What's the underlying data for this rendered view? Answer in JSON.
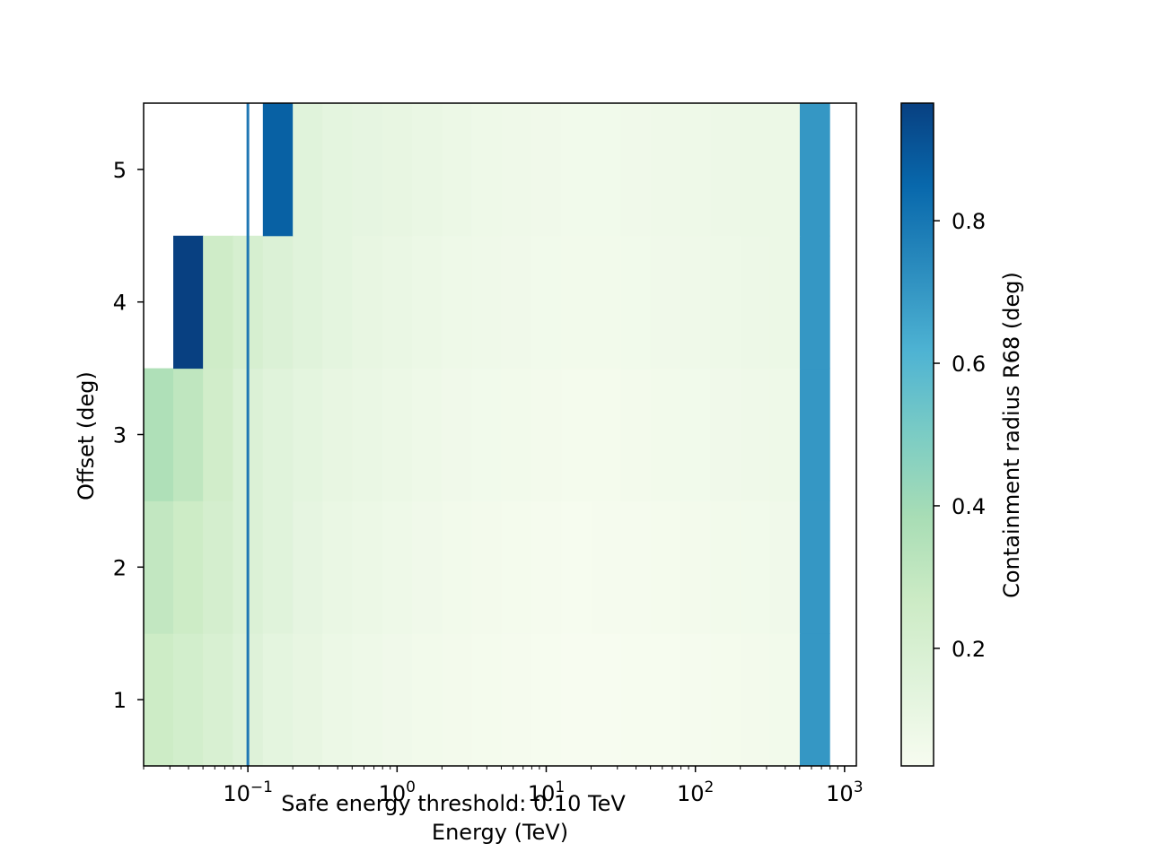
{
  "chart_data": {
    "type": "heatmap",
    "title": "",
    "xlabel": "Energy (TeV)",
    "ylabel": "Offset (deg)",
    "x_scale": "log",
    "xlim": [
      0.02,
      1200
    ],
    "ylim": [
      0.5,
      5.5
    ],
    "x_ticks": [
      {
        "value": 0.1,
        "base": "10",
        "exp": "−1"
      },
      {
        "value": 1,
        "base": "10",
        "exp": "0"
      },
      {
        "value": 10,
        "base": "10",
        "exp": "1"
      },
      {
        "value": 100,
        "base": "10",
        "exp": "2"
      },
      {
        "value": 1000,
        "base": "10",
        "exp": "3"
      }
    ],
    "y_ticks": [
      "1",
      "2",
      "3",
      "4",
      "5"
    ],
    "energy_edges": [
      0.02,
      0.0316,
      0.05,
      0.0794,
      0.126,
      0.2,
      0.316,
      0.5,
      0.794,
      1.26,
      2,
      3.16,
      5,
      7.94,
      12.6,
      20,
      31.6,
      50,
      79.4,
      126,
      200,
      316,
      501,
      794
    ],
    "offset_edges": [
      0.5,
      1.5,
      2.5,
      3.5,
      4.5,
      5.5
    ],
    "values": [
      [
        0.26,
        0.23,
        0.2,
        0.16,
        0.13,
        0.11,
        0.09,
        0.08,
        0.07,
        0.06,
        0.055,
        0.05,
        0.045,
        0.04,
        0.035,
        0.035,
        0.04,
        0.04,
        0.045,
        0.05,
        0.055,
        0.06,
        0.7
      ],
      [
        0.3,
        0.26,
        0.22,
        0.18,
        0.15,
        0.12,
        0.1,
        0.09,
        0.08,
        0.07,
        0.06,
        0.055,
        0.05,
        0.045,
        0.04,
        0.045,
        0.045,
        0.05,
        0.055,
        0.06,
        0.065,
        0.07,
        0.7
      ],
      [
        0.36,
        0.31,
        0.24,
        0.18,
        0.15,
        0.13,
        0.11,
        0.1,
        0.09,
        0.08,
        0.07,
        0.065,
        0.06,
        0.055,
        0.05,
        0.05,
        0.055,
        0.06,
        0.065,
        0.07,
        0.075,
        0.08,
        0.7
      ],
      [
        null,
        0.97,
        0.25,
        0.21,
        0.18,
        0.15,
        0.13,
        0.11,
        0.1,
        0.09,
        0.08,
        0.075,
        0.07,
        0.065,
        0.06,
        0.06,
        0.065,
        0.07,
        0.075,
        0.08,
        0.085,
        0.09,
        0.7
      ],
      [
        null,
        null,
        null,
        null,
        0.87,
        0.15,
        0.13,
        0.12,
        0.11,
        0.1,
        0.09,
        0.08,
        0.075,
        0.07,
        0.065,
        0.065,
        0.07,
        0.075,
        0.08,
        0.085,
        0.09,
        0.09,
        0.7
      ]
    ],
    "threshold": {
      "energy": 0.1,
      "label": "Safe energy threshold: 0.10 TeV",
      "color": "#1f77b4"
    },
    "colorbar": {
      "label": "Containment radius R68 (deg)",
      "range": [
        0.035,
        0.965
      ],
      "ticks": [
        "0.2",
        "0.4",
        "0.6",
        "0.8"
      ],
      "colormap": "GnBu",
      "stops": [
        "#f7fcf0",
        "#e0f3db",
        "#ccebc5",
        "#a8ddb5",
        "#7bccc4",
        "#4eb3d3",
        "#2b8cbe",
        "#0868ac",
        "#084081"
      ]
    }
  }
}
